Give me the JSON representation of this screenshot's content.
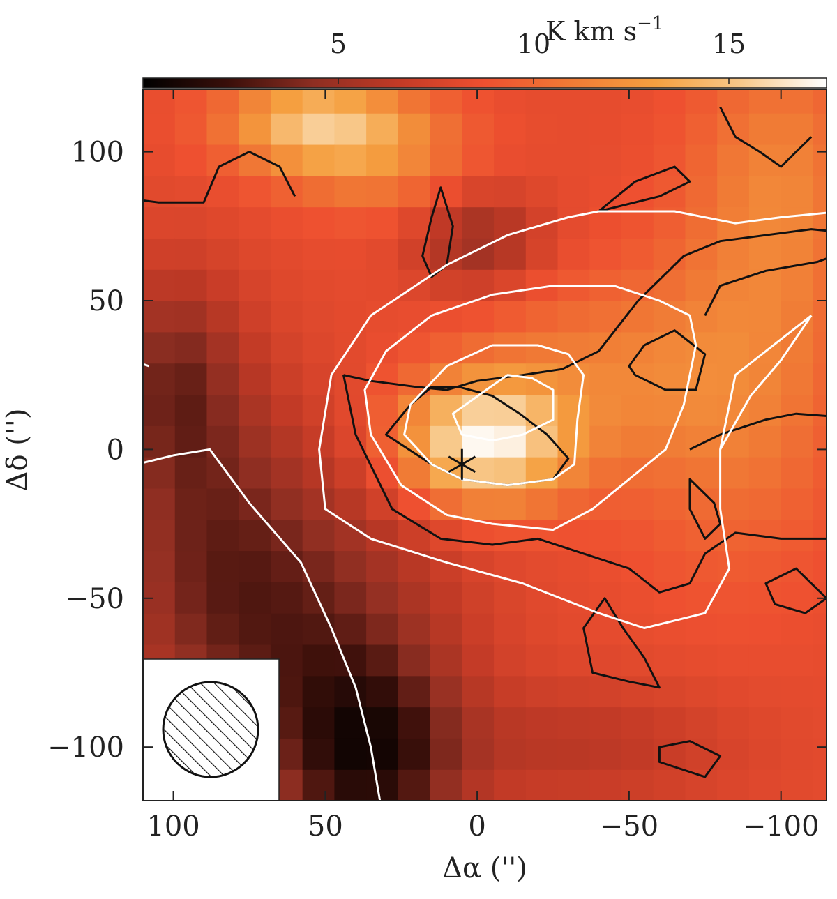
{
  "chart_data": {
    "type": "heatmap",
    "title": "",
    "xlabel": "Δα ('')",
    "ylabel": "Δδ ('')",
    "xlim": [
      110,
      -115
    ],
    "ylim": [
      -118,
      121
    ],
    "x_ticks": [
      100,
      50,
      0,
      -50,
      -100
    ],
    "x_tick_labels": [
      "100",
      "50",
      "0",
      "−50",
      "−100"
    ],
    "y_ticks": [
      100,
      50,
      0,
      -50,
      -100
    ],
    "y_tick_labels": [
      "100",
      "50",
      "0",
      "−50",
      "−100"
    ],
    "colorbar": {
      "label": "K km s",
      "label_exponent": "−1",
      "ticks": [
        5,
        10,
        15
      ],
      "tick_labels": [
        "5",
        "10",
        "15"
      ],
      "range": [
        0,
        17.5
      ],
      "colormap": [
        "#000000",
        "#3a0f0a",
        "#8e2e22",
        "#c23a26",
        "#ee5030",
        "#f07a35",
        "#f5a040",
        "#f8c88a",
        "#ffffff"
      ]
    },
    "grid": false,
    "pixel_grid": {
      "cell_size": 10.5,
      "x_start": 110,
      "y_start": -118,
      "note_values": "integrated intensity in K km/s, approximated"
    },
    "peak": {
      "x": 0,
      "y": 0,
      "value": 17.0
    },
    "source_marker": {
      "x": 5,
      "y": -5,
      "symbol": "star"
    },
    "contours_white": [
      [
        [
          -120,
          80
        ],
        [
          -100,
          78
        ],
        [
          -85,
          76
        ],
        [
          -65,
          80
        ],
        [
          -55,
          80
        ],
        [
          -40,
          80
        ],
        [
          -30,
          78
        ],
        [
          -10,
          72
        ],
        [
          10,
          62
        ],
        [
          35,
          45
        ],
        [
          48,
          25
        ],
        [
          52,
          0
        ],
        [
          50,
          -20
        ],
        [
          35,
          -30
        ],
        [
          10,
          -38
        ],
        [
          -15,
          -45
        ],
        [
          -40,
          -55
        ],
        [
          -55,
          -60
        ],
        [
          -75,
          -55
        ],
        [
          -83,
          -40
        ],
        [
          -80,
          -20
        ],
        [
          -80,
          0
        ],
        [
          -85,
          25
        ],
        [
          -110,
          45
        ]
      ],
      [
        [
          -72,
          35
        ],
        [
          -70,
          45
        ],
        [
          -60,
          50
        ],
        [
          -45,
          55
        ],
        [
          -25,
          55
        ],
        [
          -5,
          52
        ],
        [
          15,
          45
        ],
        [
          30,
          33
        ],
        [
          37,
          20
        ],
        [
          35,
          5
        ],
        [
          25,
          -12
        ],
        [
          10,
          -22
        ],
        [
          -5,
          -25
        ],
        [
          -25,
          -27
        ],
        [
          -38,
          -20
        ],
        [
          -50,
          -10
        ],
        [
          -62,
          0
        ],
        [
          -68,
          15
        ]
      ],
      [
        [
          -35,
          25
        ],
        [
          -30,
          32
        ],
        [
          -20,
          35
        ],
        [
          -5,
          35
        ],
        [
          10,
          28
        ],
        [
          22,
          15
        ],
        [
          24,
          5
        ],
        [
          15,
          -5
        ],
        [
          5,
          -10
        ],
        [
          -10,
          -12
        ],
        [
          -25,
          -10
        ],
        [
          -32,
          -5
        ],
        [
          -33,
          10
        ]
      ],
      [
        [
          -25,
          20
        ],
        [
          -18,
          24
        ],
        [
          -10,
          25
        ],
        [
          -3,
          20
        ],
        [
          8,
          12
        ],
        [
          5,
          5
        ],
        [
          -5,
          3
        ],
        [
          -15,
          5
        ],
        [
          -25,
          10
        ]
      ],
      [
        [
          -110,
          45
        ],
        [
          -100,
          30
        ],
        [
          -90,
          18
        ],
        [
          -80,
          0
        ]
      ],
      [
        [
          110,
          58
        ],
        [
          116,
          46
        ],
        [
          114,
          30
        ],
        [
          108,
          28
        ]
      ],
      [
        [
          112,
          -5
        ],
        [
          100,
          -2
        ],
        [
          88,
          0
        ],
        [
          75,
          -18
        ],
        [
          58,
          -38
        ],
        [
          48,
          -60
        ],
        [
          40,
          -80
        ],
        [
          35,
          -100
        ],
        [
          32,
          -118
        ]
      ]
    ],
    "contours_black": [
      [
        [
          44,
          25
        ],
        [
          35,
          23
        ],
        [
          20,
          21
        ],
        [
          10,
          20
        ],
        [
          0,
          23
        ],
        [
          -15,
          25
        ],
        [
          -28,
          27
        ],
        [
          -40,
          33
        ],
        [
          -53,
          50
        ],
        [
          -68,
          65
        ],
        [
          -80,
          70
        ],
        [
          -110,
          74
        ],
        [
          -120,
          73
        ]
      ],
      [
        [
          44,
          25
        ],
        [
          40,
          5
        ],
        [
          28,
          -20
        ],
        [
          12,
          -30
        ],
        [
          -5,
          -32
        ],
        [
          -20,
          -30
        ],
        [
          -35,
          -35
        ],
        [
          -50,
          -40
        ],
        [
          -60,
          -48
        ],
        [
          -70,
          -45
        ],
        [
          -75,
          -35
        ],
        [
          -85,
          -28
        ],
        [
          -100,
          -30
        ],
        [
          -115,
          -30
        ]
      ],
      [
        [
          -23,
          5
        ],
        [
          -14,
          12
        ],
        [
          -5,
          18
        ],
        [
          6,
          21
        ],
        [
          15,
          21
        ],
        [
          22,
          15
        ],
        [
          30,
          5
        ],
        [
          15,
          -5
        ],
        [
          5,
          -10
        ],
        [
          -10,
          -12
        ],
        [
          -25,
          -10
        ],
        [
          -30,
          -3
        ]
      ],
      [
        [
          -50,
          28
        ],
        [
          -55,
          35
        ],
        [
          -65,
          40
        ],
        [
          -75,
          32
        ],
        [
          -72,
          20
        ],
        [
          -62,
          20
        ],
        [
          -52,
          25
        ]
      ],
      [
        [
          -75,
          45
        ],
        [
          -80,
          55
        ],
        [
          -95,
          60
        ],
        [
          -112,
          63
        ],
        [
          -120,
          66
        ]
      ],
      [
        [
          -70,
          0
        ],
        [
          -80,
          5
        ],
        [
          -95,
          10
        ],
        [
          -105,
          12
        ],
        [
          -118,
          11
        ]
      ],
      [
        [
          60,
          85
        ],
        [
          65,
          95
        ],
        [
          75,
          100
        ],
        [
          85,
          95
        ],
        [
          90,
          83
        ],
        [
          105,
          83
        ],
        [
          120,
          85
        ]
      ],
      [
        [
          12,
          88
        ],
        [
          15,
          78
        ],
        [
          18,
          65
        ],
        [
          15,
          58
        ],
        [
          10,
          62
        ],
        [
          8,
          75
        ]
      ],
      [
        [
          -80,
          115
        ],
        [
          -85,
          105
        ],
        [
          -93,
          100
        ],
        [
          -100,
          95
        ],
        [
          -105,
          100
        ],
        [
          -110,
          105
        ]
      ],
      [
        [
          -40,
          80
        ],
        [
          -52,
          90
        ],
        [
          -65,
          95
        ],
        [
          -70,
          90
        ],
        [
          -60,
          85
        ]
      ],
      [
        [
          -70,
          -10
        ],
        [
          -78,
          -18
        ],
        [
          -80,
          -25
        ],
        [
          -75,
          -30
        ],
        [
          -70,
          -20
        ]
      ],
      [
        [
          -105,
          -40
        ],
        [
          -110,
          -45
        ],
        [
          -115,
          -50
        ],
        [
          -108,
          -55
        ],
        [
          -98,
          -52
        ],
        [
          -95,
          -45
        ]
      ],
      [
        [
          -42,
          -50
        ],
        [
          -48,
          -60
        ],
        [
          -55,
          -70
        ],
        [
          -60,
          -80
        ],
        [
          -50,
          -78
        ],
        [
          -38,
          -75
        ],
        [
          -35,
          -60
        ]
      ],
      [
        [
          -60,
          -100
        ],
        [
          -70,
          -98
        ],
        [
          -80,
          -103
        ],
        [
          -75,
          -110
        ],
        [
          -60,
          -105
        ]
      ]
    ]
  }
}
